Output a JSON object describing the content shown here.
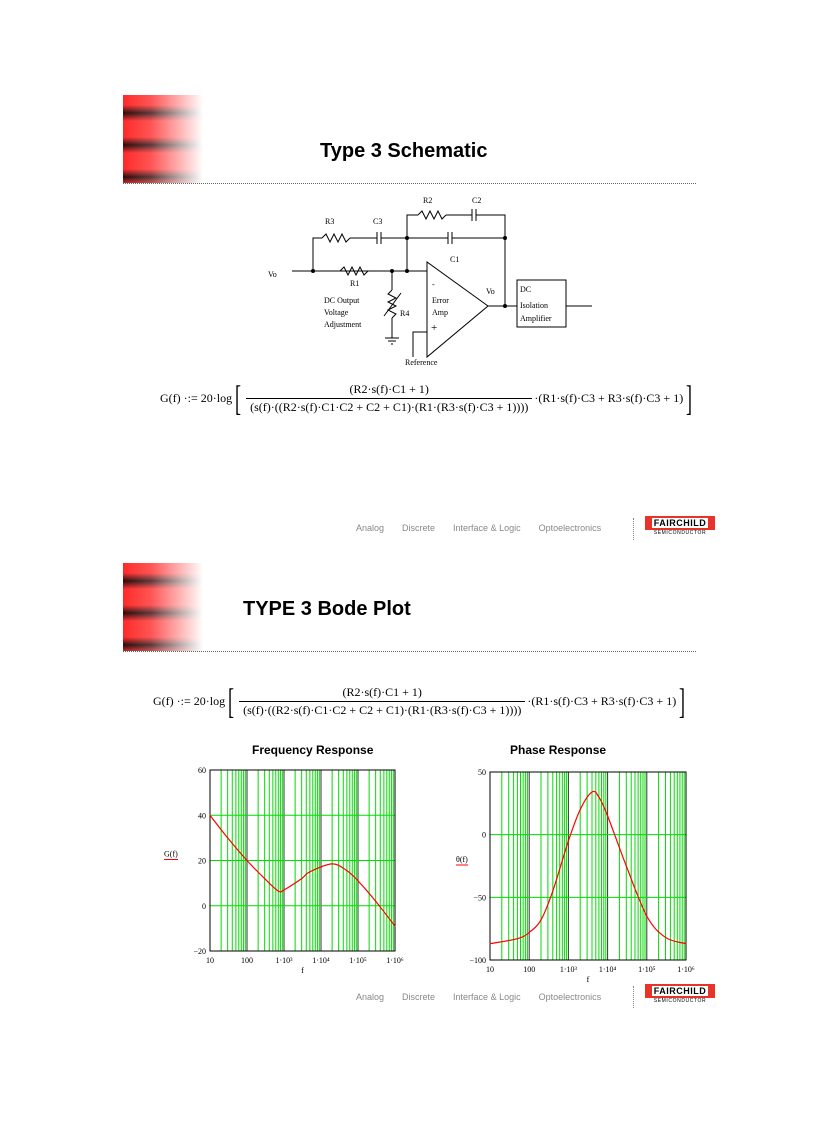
{
  "slides": [
    {
      "title": "Type 3 Schematic",
      "schematic": {
        "R3": "R3",
        "C3": "C3",
        "R2": "R2",
        "C2": "C2",
        "C1": "C1",
        "R1": "R1",
        "R4": "R4",
        "vo_in": "Vo",
        "vo_out": "Vo",
        "adjust_lines": [
          "DC Output",
          "Voltage",
          "Adjustment"
        ],
        "minus": "-",
        "plus": "+",
        "amp_lines": [
          "Error",
          "Amp"
        ],
        "reference": "Reference",
        "isolation_lines": [
          "DC",
          "Isolation",
          "Amplifier"
        ]
      },
      "formula": {
        "lhs": "G(f)",
        "assign": "·:= 20·log",
        "numerator": "(R2·s(f)·C1 + 1)",
        "denominator": "(s(f)·((R2·s(f)·C1·C2 + C2 + C1)·(R1·(R3·s(f)·C3 + 1))))",
        "factor": "·(R1·s(f)·C3 + R3·s(f)·C3 + 1)"
      }
    },
    {
      "title": "TYPE 3 Bode Plot",
      "formula": {
        "lhs": "G(f)",
        "assign": "·:= 20·log",
        "numerator": "(R2·s(f)·C1 + 1)",
        "denominator": "(s(f)·((R2·s(f)·C1·C2 + C2 + C1)·(R1·(R3·s(f)·C3 + 1))))",
        "factor": "·(R1·s(f)·C3 + R3·s(f)·C3 + 1)"
      }
    }
  ],
  "footer": {
    "links": [
      "Analog",
      "Discrete",
      "Interface & Logic",
      "Optoelectronics"
    ],
    "logo_text": "FAIRCHILD",
    "logo_sub": "SEMICONDUCTOR",
    "logo_color": "#e8332a"
  },
  "chart_data": [
    {
      "type": "line",
      "title": "Frequency Response",
      "xlabel": "f",
      "ylabel": "G(f)",
      "xscale": "log",
      "xlim": [
        10,
        1000000
      ],
      "ylim": [
        -20,
        60
      ],
      "grid": true,
      "grid_color": "#00dd00",
      "line_color": "#ff0000",
      "x_tick_labels": [
        "10",
        "100",
        "1·10³",
        "1·10⁴",
        "1·10⁵",
        "1·10⁶"
      ],
      "y_tick_labels": [
        "60",
        "40",
        "20",
        "0",
        "−20"
      ],
      "y_ticks": [
        60,
        40,
        20,
        0,
        -20
      ],
      "x": [
        10,
        30,
        100,
        300,
        700,
        1000,
        3000,
        5000,
        20000,
        50000,
        100000,
        300000,
        1000000
      ],
      "y": [
        40,
        30,
        20,
        12,
        6.5,
        7,
        12,
        15,
        18.5,
        15.5,
        11,
        2,
        -9
      ]
    },
    {
      "type": "line",
      "title": "Phase Response",
      "xlabel": "f",
      "ylabel": "θ(f)",
      "xscale": "log",
      "xlim": [
        10,
        1000000
      ],
      "ylim": [
        -100,
        50
      ],
      "grid": true,
      "grid_color": "#00dd00",
      "line_color": "#ff0000",
      "x_tick_labels": [
        "10",
        "100",
        "1·10³",
        "1·10⁴",
        "1·10⁵",
        "1·10⁶"
      ],
      "y_tick_labels": [
        "50",
        "0",
        "−50",
        "−100"
      ],
      "y_ticks": [
        50,
        0,
        -50,
        -100
      ],
      "x": [
        10,
        50,
        100,
        200,
        400,
        1000,
        2000,
        4000,
        6000,
        10000,
        30000,
        100000,
        300000,
        1000000
      ],
      "y": [
        -87,
        -83,
        -78,
        -68,
        -45,
        -5,
        20,
        34,
        30,
        15,
        -25,
        -65,
        -82,
        -87
      ]
    }
  ]
}
